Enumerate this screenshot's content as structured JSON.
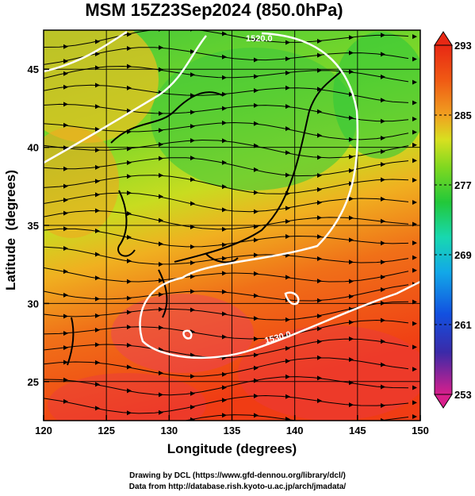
{
  "title": "MSM 15Z23Sep2024 (850.0hPa)",
  "x_axis": {
    "label": "Longitude (degrees)",
    "ticks": [
      120,
      125,
      130,
      135,
      140,
      145,
      150
    ],
    "range": [
      120,
      150
    ]
  },
  "y_axis": {
    "label": "Latitude  (degrees)",
    "ticks": [
      25,
      30,
      35,
      40,
      45
    ],
    "range": [
      22.5,
      47.5
    ]
  },
  "colorbar": {
    "ticks": [
      293,
      285,
      277,
      269,
      261,
      253
    ],
    "range": [
      253,
      293
    ],
    "colors": [
      "#d81f8c",
      "#3b2aa8",
      "#1250e0",
      "#12a8e8",
      "#18d8b0",
      "#22c83a",
      "#7fd820",
      "#d8e020",
      "#f0a020",
      "#f05a14",
      "#e82814"
    ]
  },
  "contours": [
    {
      "label": "1530.0",
      "color": "#ffffff"
    },
    {
      "label": "1520.0",
      "color": "#ffffff"
    }
  ],
  "credits": [
    "Drawing by DCL (https://www.gfd-dennou.org/library/dcl/)",
    "Data from http://database.rish.kyoto-u.ac.jp/arch/jmadata/"
  ]
}
